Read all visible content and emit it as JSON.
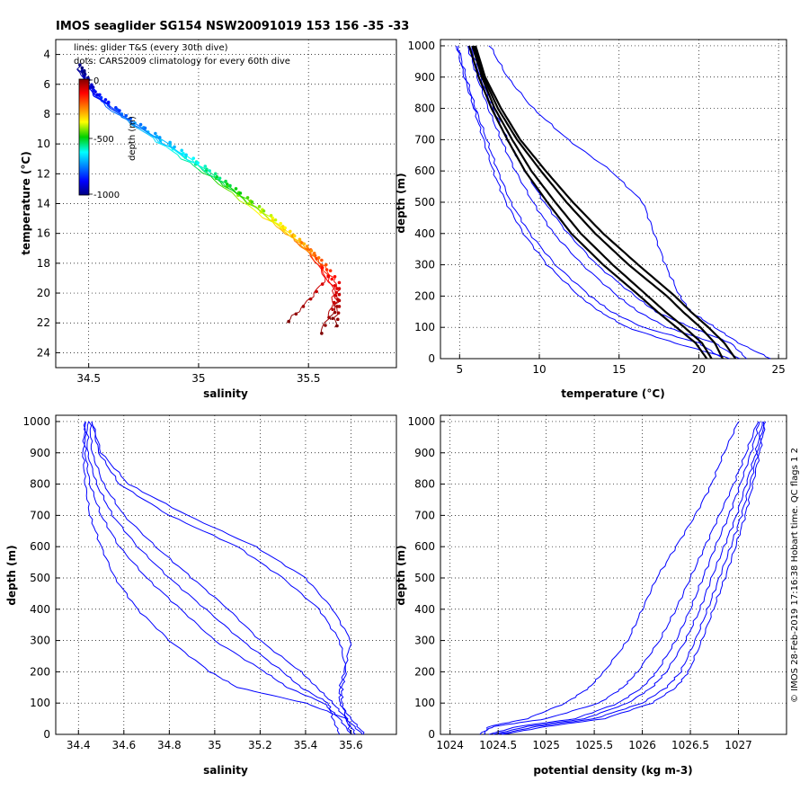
{
  "title": "IMOS seaglider SG154 NSW20091019 153  156  -35  -33",
  "notes": [
    "lines: glider T&S (every 30th dive)",
    "dots: CARS2009 climatology for every 60th dive"
  ],
  "footer": "© IMOS 28-Feb-2019 17:16:38 Hobart time. QC flags 1  2",
  "colorbar": {
    "label": "depth (m)",
    "ticks": [
      "0",
      "-500",
      "-1000"
    ],
    "colormap": "jet"
  },
  "colors": {
    "glider_profile": "#0000ff",
    "climatology_profile": "#000000"
  },
  "chart_data": [
    {
      "id": "ts",
      "type": "scatter",
      "xlabel": "salinity",
      "ylabel": "temperature (°C)",
      "xlim": [
        34.35,
        35.9
      ],
      "ylim": [
        3,
        25
      ],
      "xticks": [
        34.5,
        35,
        35.5
      ],
      "xticklabels": [
        "34.5",
        "35",
        "35.5"
      ],
      "yticks": [
        4,
        6,
        8,
        10,
        12,
        14,
        16,
        18,
        20,
        22,
        24
      ],
      "yticklabels": [
        "4",
        "6",
        "8",
        "10",
        "12",
        "14",
        "16",
        "18",
        "20",
        "22",
        "24"
      ],
      "grid": true,
      "series": [
        {
          "depths": [
            0,
            50,
            100,
            200,
            300,
            400,
            500,
            600,
            700,
            800,
            900,
            1000
          ],
          "s": [
            35.62,
            35.63,
            35.61,
            35.52,
            35.42,
            35.28,
            35.12,
            34.98,
            34.8,
            34.62,
            34.5,
            34.46
          ],
          "t": [
            22.3,
            21.0,
            19.6,
            17.6,
            16.2,
            14.5,
            12.8,
            11.3,
            9.6,
            7.8,
            6.3,
            5.0
          ]
        },
        {
          "depths": [
            0,
            50,
            100,
            200,
            300,
            400,
            500,
            600,
            700,
            800,
            900,
            1000
          ],
          "s": [
            35.55,
            35.6,
            35.62,
            35.55,
            35.45,
            35.32,
            35.16,
            35.02,
            34.86,
            34.66,
            34.52,
            34.47
          ],
          "t": [
            22.8,
            21.2,
            19.8,
            17.9,
            16.5,
            14.9,
            13.1,
            11.6,
            10.0,
            8.2,
            6.6,
            5.2
          ]
        },
        {
          "depths": [
            0,
            50,
            100,
            200,
            300,
            400,
            500,
            600,
            700,
            800,
            900,
            1000
          ],
          "s": [
            35.4,
            35.5,
            35.58,
            35.5,
            35.38,
            35.22,
            35.07,
            34.93,
            34.76,
            34.58,
            34.48,
            34.45
          ],
          "t": [
            22.0,
            20.5,
            19.0,
            17.2,
            15.8,
            14.1,
            12.4,
            11.0,
            9.3,
            7.5,
            6.0,
            4.8
          ]
        },
        {
          "depths": [
            0,
            50,
            100,
            200,
            300,
            400,
            500,
            600,
            700,
            800,
            900,
            1000
          ],
          "s": [
            35.6,
            35.63,
            35.63,
            35.57,
            35.47,
            35.34,
            35.18,
            35.04,
            34.88,
            34.68,
            34.53,
            34.47
          ],
          "t": [
            21.8,
            20.6,
            19.4,
            18.2,
            16.8,
            15.2,
            13.4,
            11.9,
            10.3,
            8.4,
            6.8,
            5.3
          ]
        }
      ]
    },
    {
      "id": "temp_depth",
      "type": "line",
      "xlabel": "temperature (°C)",
      "ylabel": "depth (m)",
      "xlim": [
        3.8,
        25.5
      ],
      "ylim": [
        1020,
        0
      ],
      "xticks": [
        5,
        10,
        15,
        20,
        25
      ],
      "xticklabels": [
        "5",
        "10",
        "15",
        "20",
        "25"
      ],
      "yticks": [
        0,
        100,
        200,
        300,
        400,
        500,
        600,
        700,
        800,
        900,
        1000
      ],
      "yticklabels": [
        "0",
        "100",
        "200",
        "300",
        "400",
        "500",
        "600",
        "700",
        "800",
        "900",
        "1000"
      ],
      "grid": true,
      "depth": [
        0,
        50,
        100,
        150,
        200,
        300,
        400,
        500,
        600,
        700,
        800,
        900,
        1000
      ],
      "series": [
        {
          "kind": "glider",
          "values": [
            21.5,
            20.0,
            16.5,
            14.5,
            13.2,
            11.0,
            9.4,
            8.2,
            7.4,
            6.7,
            6.0,
            5.4,
            4.9
          ]
        },
        {
          "kind": "glider",
          "values": [
            22.5,
            21.0,
            18.0,
            16.2,
            14.9,
            12.7,
            10.9,
            9.6,
            8.5,
            7.6,
            6.8,
            6.1,
            5.5
          ]
        },
        {
          "kind": "glider",
          "values": [
            23.0,
            22.0,
            19.5,
            17.3,
            16.0,
            13.6,
            11.8,
            10.3,
            9.1,
            8.0,
            7.1,
            6.3,
            5.7
          ]
        },
        {
          "kind": "glider",
          "values": [
            24.5,
            22.5,
            21.0,
            19.5,
            18.8,
            17.9,
            17.2,
            16.5,
            14.5,
            11.8,
            9.6,
            8.0,
            6.9
          ]
        },
        {
          "kind": "glider",
          "values": [
            22.0,
            18.5,
            15.5,
            13.8,
            12.5,
            10.5,
            9.0,
            7.9,
            7.1,
            6.5,
            5.9,
            5.3,
            4.8
          ]
        },
        {
          "kind": "climatology",
          "values": [
            20.5,
            19.8,
            18.6,
            17.4,
            16.3,
            14.0,
            12.0,
            10.5,
            9.1,
            8.0,
            7.0,
            6.2,
            5.6
          ]
        },
        {
          "kind": "climatology",
          "values": [
            20.8,
            20.2,
            19.1,
            17.9,
            16.8,
            14.6,
            12.6,
            11.0,
            9.5,
            8.3,
            7.2,
            6.4,
            5.8
          ]
        },
        {
          "kind": "climatology",
          "values": [
            21.5,
            21.0,
            20.1,
            19.0,
            18.0,
            15.6,
            13.5,
            11.7,
            10.1,
            8.6,
            7.4,
            6.5,
            5.9
          ]
        },
        {
          "kind": "climatology",
          "values": [
            22.3,
            21.6,
            20.6,
            19.5,
            18.5,
            16.2,
            14.0,
            12.1,
            10.4,
            8.8,
            7.6,
            6.6,
            6.0
          ]
        }
      ]
    },
    {
      "id": "sal_depth",
      "type": "line",
      "xlabel": "salinity",
      "ylabel": "depth (m)",
      "xlim": [
        34.3,
        35.8
      ],
      "ylim": [
        1020,
        0
      ],
      "xticks": [
        34.4,
        34.6,
        34.8,
        35,
        35.2,
        35.4,
        35.6
      ],
      "xticklabels": [
        "34.4",
        "34.6",
        "34.8",
        "35",
        "35.2",
        "35.4",
        "35.6"
      ],
      "yticks": [
        0,
        100,
        200,
        300,
        400,
        500,
        600,
        700,
        800,
        900,
        1000
      ],
      "yticklabels": [
        "0",
        "100",
        "200",
        "300",
        "400",
        "500",
        "600",
        "700",
        "800",
        "900",
        "1000"
      ],
      "grid": true,
      "depth": [
        0,
        50,
        100,
        150,
        200,
        300,
        400,
        500,
        600,
        700,
        800,
        900,
        1000
      ],
      "series": [
        {
          "values": [
            35.65,
            35.58,
            35.4,
            35.1,
            34.98,
            34.8,
            34.66,
            34.56,
            34.5,
            34.45,
            34.43,
            34.42,
            34.43
          ]
        },
        {
          "values": [
            35.6,
            35.55,
            35.48,
            35.32,
            35.22,
            35.0,
            34.85,
            34.7,
            34.58,
            34.5,
            34.45,
            34.43,
            34.43
          ]
        },
        {
          "values": [
            35.55,
            35.52,
            35.5,
            35.38,
            35.3,
            35.12,
            34.96,
            34.8,
            34.66,
            34.55,
            34.48,
            34.44,
            34.44
          ]
        },
        {
          "values": [
            35.62,
            35.58,
            35.52,
            35.45,
            35.38,
            35.2,
            35.06,
            34.9,
            34.74,
            34.6,
            34.51,
            34.46,
            34.45
          ]
        },
        {
          "values": [
            35.66,
            35.6,
            35.55,
            35.55,
            35.57,
            35.6,
            35.52,
            35.4,
            35.18,
            34.88,
            34.62,
            34.5,
            34.46
          ]
        },
        {
          "values": [
            35.6,
            35.58,
            35.56,
            35.56,
            35.58,
            35.55,
            35.46,
            35.3,
            35.1,
            34.8,
            34.58,
            34.49,
            34.46
          ]
        }
      ]
    },
    {
      "id": "dens_depth",
      "type": "line",
      "xlabel": "potential density (kg m-3)",
      "ylabel": "depth (m)",
      "xlim": [
        1023.9,
        1027.5
      ],
      "ylim": [
        1020,
        0
      ],
      "xticks": [
        1024,
        1024.5,
        1025,
        1025.5,
        1026,
        1026.5,
        1027
      ],
      "xticklabels": [
        "1024",
        "1024.5",
        "1025",
        "1025.5",
        "1026",
        "1026.5",
        "1027"
      ],
      "yticks": [
        0,
        100,
        200,
        300,
        400,
        500,
        600,
        700,
        800,
        900,
        1000
      ],
      "yticklabels": [
        "0",
        "100",
        "200",
        "300",
        "400",
        "500",
        "600",
        "700",
        "800",
        "900",
        "1000"
      ],
      "grid": true,
      "depth": [
        0,
        25,
        50,
        100,
        150,
        200,
        300,
        400,
        500,
        600,
        700,
        800,
        900,
        1000
      ],
      "series": [
        {
          "values": [
            1024.35,
            1024.4,
            1024.8,
            1025.2,
            1025.45,
            1025.6,
            1025.85,
            1026.0,
            1026.15,
            1026.35,
            1026.55,
            1026.72,
            1026.85,
            1027.0
          ]
        },
        {
          "values": [
            1024.3,
            1024.45,
            1025.0,
            1025.55,
            1025.8,
            1025.95,
            1026.18,
            1026.35,
            1026.5,
            1026.65,
            1026.8,
            1026.95,
            1027.08,
            1027.2
          ]
        },
        {
          "values": [
            1024.45,
            1024.8,
            1025.4,
            1025.85,
            1026.1,
            1026.25,
            1026.45,
            1026.6,
            1026.72,
            1026.85,
            1026.98,
            1027.08,
            1027.18,
            1027.25
          ]
        },
        {
          "values": [
            1024.5,
            1024.9,
            1025.5,
            1026.0,
            1026.25,
            1026.4,
            1026.55,
            1026.68,
            1026.8,
            1026.92,
            1027.03,
            1027.12,
            1027.2,
            1027.27
          ]
        },
        {
          "values": [
            1024.55,
            1025.0,
            1025.6,
            1026.1,
            1026.35,
            1026.48,
            1026.62,
            1026.74,
            1026.86,
            1026.97,
            1027.07,
            1027.15,
            1027.22,
            1027.28
          ]
        },
        {
          "values": [
            1024.4,
            1024.7,
            1025.3,
            1025.75,
            1026.0,
            1026.15,
            1026.35,
            1026.5,
            1026.63,
            1026.76,
            1026.9,
            1027.02,
            1027.13,
            1027.22
          ]
        }
      ]
    }
  ]
}
